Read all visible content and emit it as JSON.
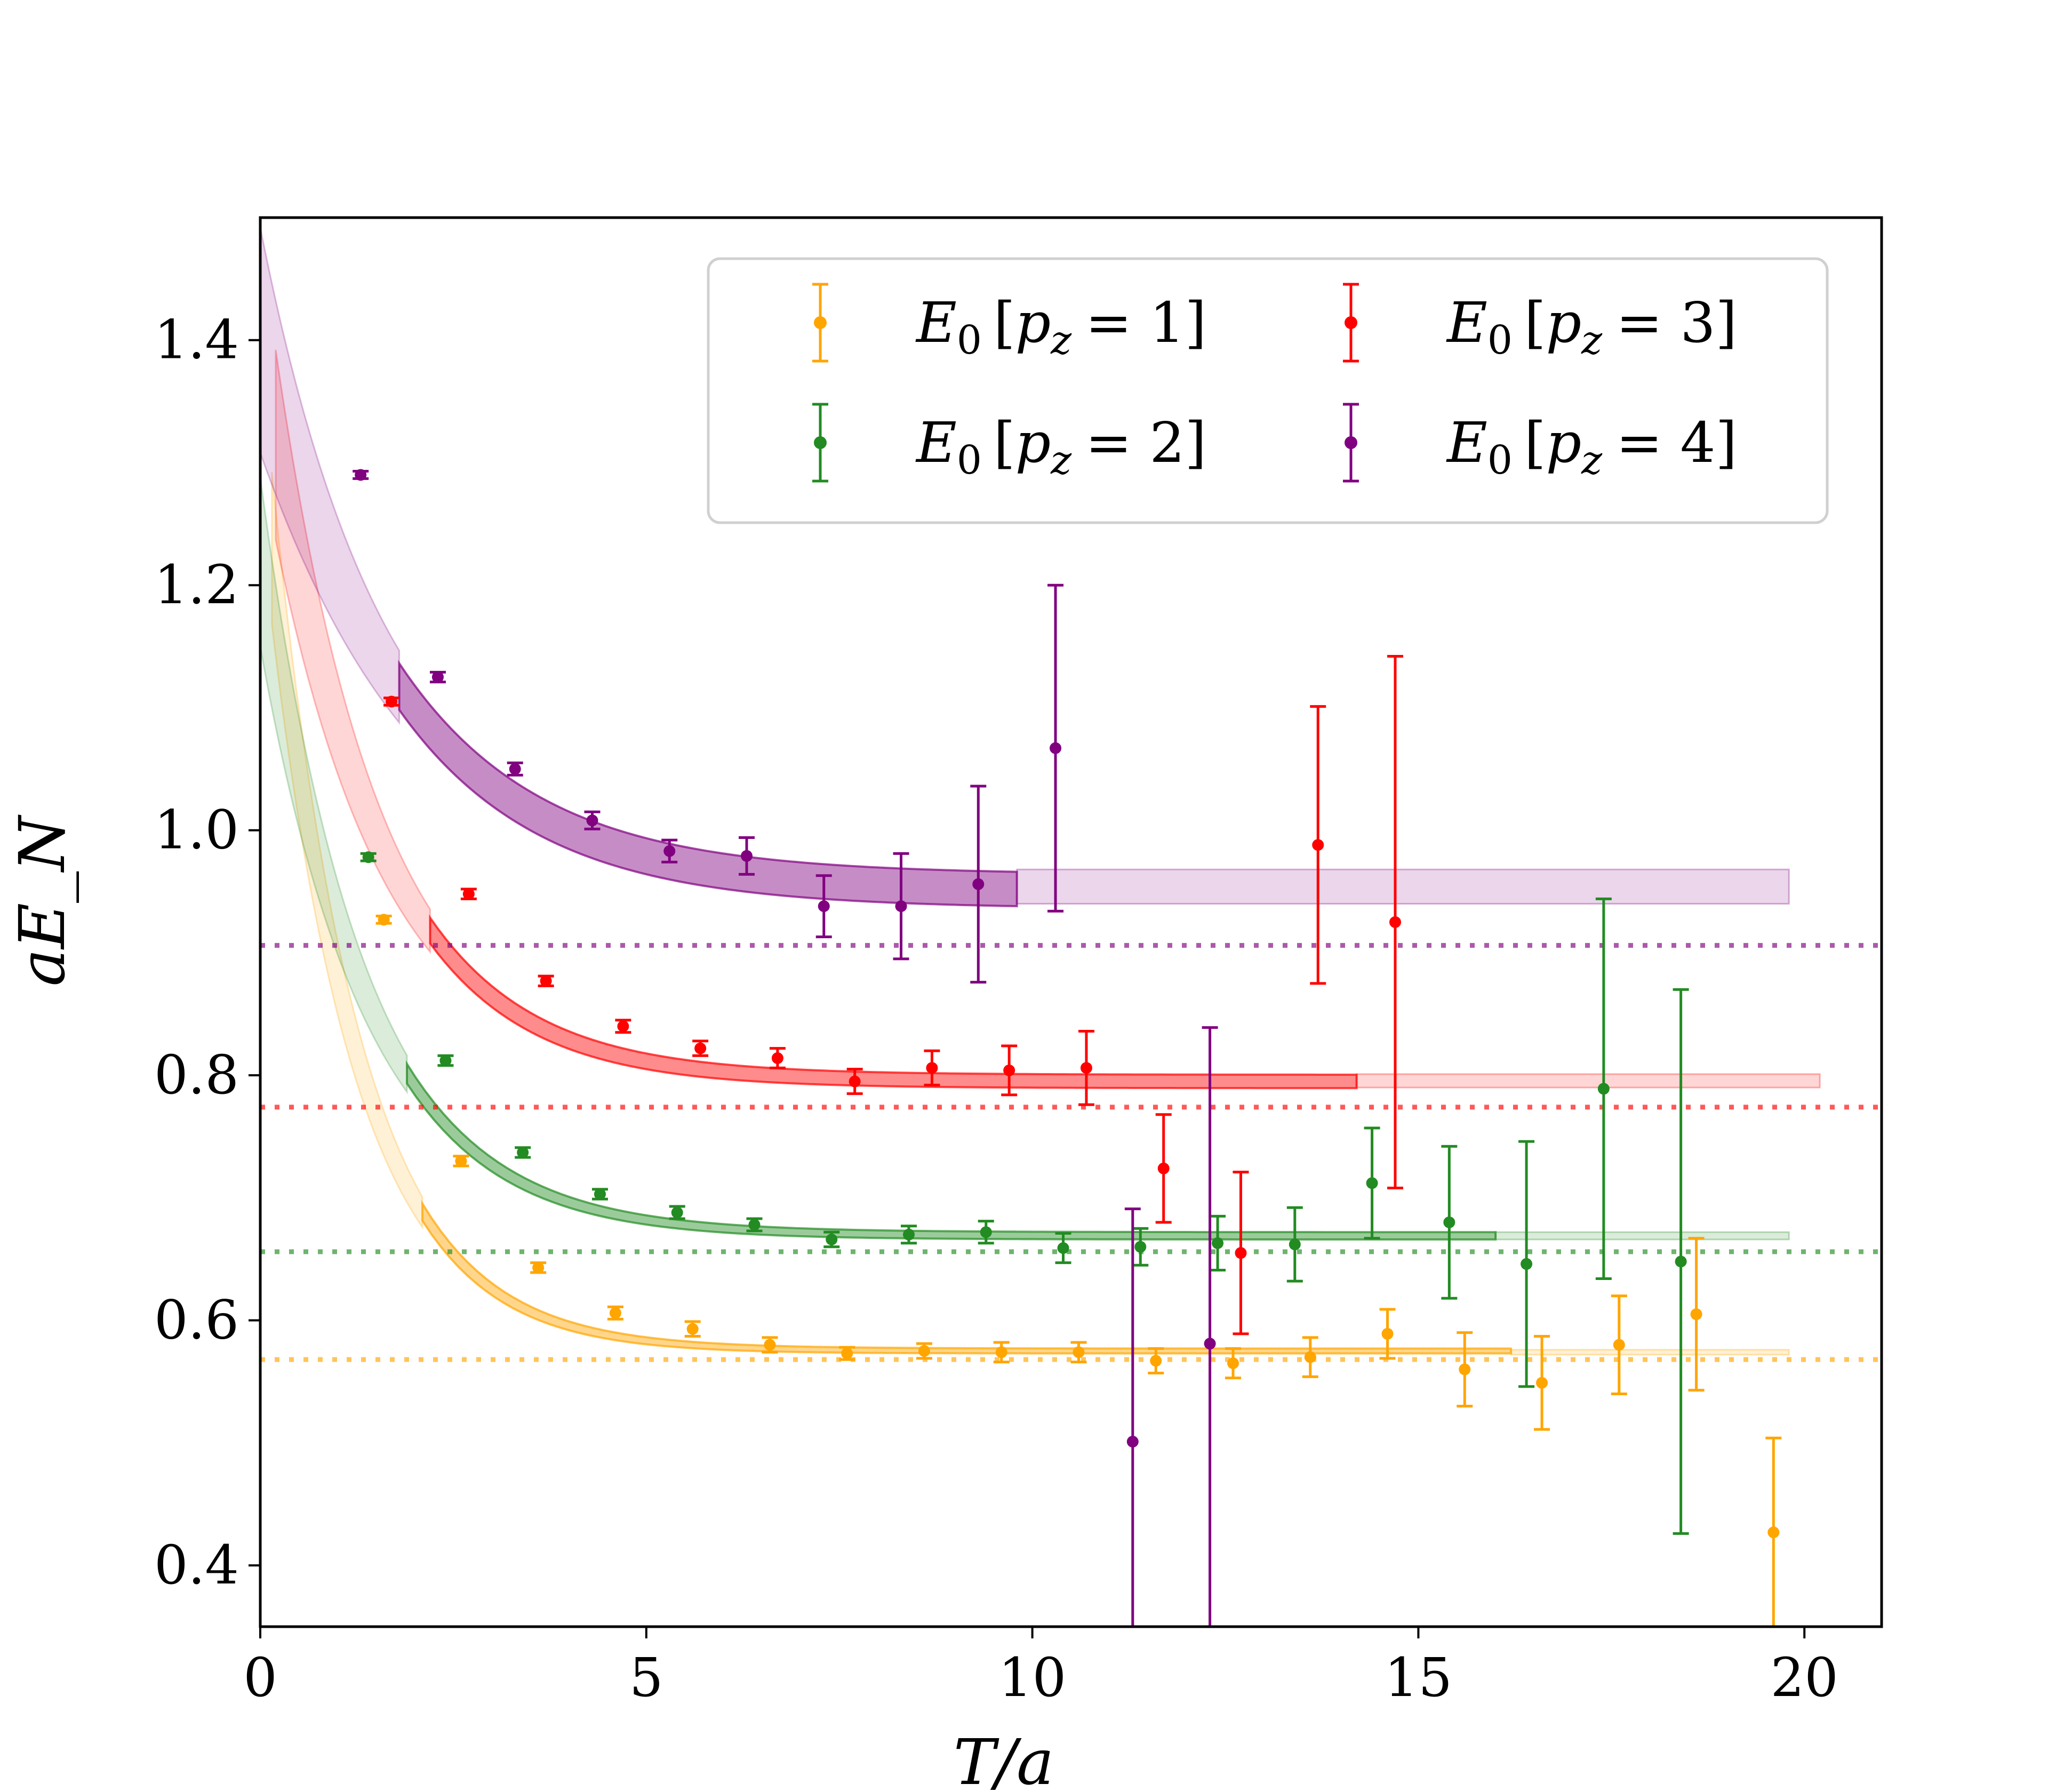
{
  "chart_data": {
    "type": "scatter",
    "title": "",
    "xlabel": "T/a",
    "ylabel": "aE_N",
    "xlim": [
      0,
      21
    ],
    "ylim": [
      0.35,
      1.5
    ],
    "xticks": [
      0,
      5,
      10,
      15,
      20
    ],
    "yticks": [
      0.4,
      0.6,
      0.8,
      1.0,
      1.2,
      1.4
    ],
    "xtick_labels": [
      "0",
      "5",
      "10",
      "15",
      "20"
    ],
    "ytick_labels": [
      "0.4",
      "0.6",
      "0.8",
      "1.0",
      "1.2",
      "1.4"
    ],
    "legend_position": "top-right",
    "series": [
      {
        "name": "E_0 [p_z = 1]",
        "legend": {
          "sym": "E",
          "sub": "0",
          "pre": "[",
          "var": "p",
          "vsub": "z",
          "post": "= 1]"
        },
        "color": "#FFA500",
        "x": [
          1.6,
          2.6,
          3.6,
          4.6,
          5.6,
          6.6,
          7.6,
          8.6,
          9.6,
          10.6,
          11.6,
          12.6,
          13.6,
          14.6,
          15.6,
          16.6,
          17.6,
          18.6,
          19.6
        ],
        "y": [
          0.927,
          0.73,
          0.643,
          0.606,
          0.593,
          0.58,
          0.573,
          0.575,
          0.574,
          0.574,
          0.567,
          0.565,
          0.57,
          0.589,
          0.56,
          0.549,
          0.58,
          0.605,
          0.427
        ],
        "yerr": [
          0.003,
          0.004,
          0.004,
          0.005,
          0.006,
          0.006,
          0.005,
          0.006,
          0.008,
          0.008,
          0.01,
          0.012,
          0.016,
          0.02,
          0.03,
          0.038,
          0.04,
          0.062,
          0.077
        ],
        "asymptote": 0.568,
        "fit": {
          "E0": 0.575,
          "A": 0.75,
          "dE": 0.9
        },
        "band": {
          "early_start": 0.15,
          "solid_start": 2.1,
          "solid_end": 16.2,
          "plateau_end": 19.8,
          "lo": 0.572,
          "hi": 0.576
        }
      },
      {
        "name": "E_0 [p_z = 2]",
        "legend": {
          "sym": "E",
          "sub": "0",
          "pre": "[",
          "var": "p",
          "vsub": "z",
          "post": "= 2]"
        },
        "color": "#228B22",
        "x": [
          1.4,
          2.4,
          3.4,
          4.4,
          5.4,
          6.4,
          7.4,
          8.4,
          9.4,
          10.4,
          11.4,
          12.4,
          13.4,
          14.4,
          15.4,
          16.4,
          17.4,
          18.4
        ],
        "y": [
          0.978,
          0.812,
          0.737,
          0.703,
          0.688,
          0.678,
          0.666,
          0.67,
          0.672,
          0.659,
          0.66,
          0.663,
          0.662,
          0.712,
          0.68,
          0.646,
          0.789,
          0.648
        ],
        "yerr": [
          0.003,
          0.004,
          0.004,
          0.004,
          0.005,
          0.005,
          0.006,
          0.007,
          0.009,
          0.012,
          0.015,
          0.022,
          0.03,
          0.045,
          0.062,
          0.1,
          0.155,
          0.222
        ],
        "asymptote": 0.656,
        "fit": {
          "E0": 0.669,
          "A": 0.55,
          "dE": 0.75
        },
        "band": {
          "early_start": 0.0,
          "solid_start": 1.9,
          "solid_end": 16.0,
          "plateau_end": 19.8,
          "lo": 0.666,
          "hi": 0.672
        }
      },
      {
        "name": "E_0 [p_z = 3]",
        "legend": {
          "sym": "E",
          "sub": "0",
          "pre": "[",
          "var": "p",
          "vsub": "z",
          "post": "= 3]"
        },
        "color": "#FF0000",
        "x": [
          1.7,
          2.7,
          3.7,
          4.7,
          5.7,
          6.7,
          7.7,
          8.7,
          9.7,
          10.7,
          11.7,
          12.7,
          13.7,
          14.7
        ],
        "y": [
          1.105,
          0.948,
          0.877,
          0.84,
          0.822,
          0.814,
          0.795,
          0.806,
          0.804,
          0.806,
          0.724,
          0.655,
          0.988,
          0.925
        ],
        "yerr": [
          0.003,
          0.004,
          0.004,
          0.005,
          0.006,
          0.008,
          0.01,
          0.014,
          0.02,
          0.03,
          0.044,
          0.066,
          0.113,
          0.217
        ],
        "asymptote": 0.774,
        "fit": {
          "E0": 0.795,
          "A": 0.6,
          "dE": 0.72
        },
        "band": {
          "early_start": 0.2,
          "solid_start": 2.2,
          "solid_end": 14.2,
          "plateau_end": 20.2,
          "lo": 0.79,
          "hi": 0.801
        }
      },
      {
        "name": "E_0 [p_z = 4]",
        "legend": {
          "sym": "E",
          "sub": "0",
          "pre": "[",
          "var": "p",
          "vsub": "z",
          "post": "= 4]"
        },
        "color": "#800080",
        "x": [
          1.3,
          2.3,
          3.3,
          4.3,
          5.3,
          6.3,
          7.3,
          8.3,
          9.3,
          10.3,
          11.3,
          12.3
        ],
        "y": [
          1.29,
          1.125,
          1.05,
          1.008,
          0.983,
          0.979,
          0.938,
          0.938,
          0.956,
          1.067,
          0.501,
          0.581
        ],
        "yerr": [
          0.003,
          0.004,
          0.005,
          0.007,
          0.009,
          0.015,
          0.025,
          0.043,
          0.08,
          0.133,
          0.19,
          0.258
        ],
        "asymptote": 0.906,
        "fit": {
          "E0": 0.95,
          "A": 0.45,
          "dE": 0.55
        },
        "band": {
          "early_start": 0.0,
          "solid_start": 1.8,
          "solid_end": 9.8,
          "plateau_end": 19.8,
          "lo": 0.94,
          "hi": 0.968
        }
      }
    ]
  }
}
